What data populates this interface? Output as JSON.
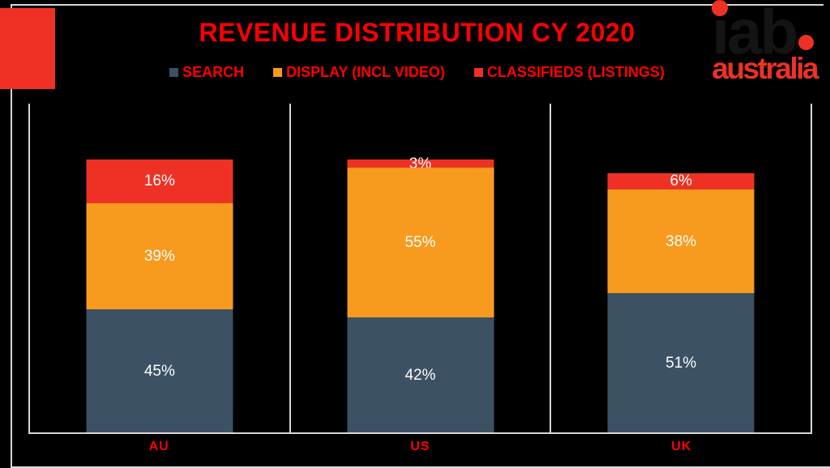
{
  "title": "REVENUE DISTRIBUTION CY 2020",
  "logo": {
    "brand": "iab",
    "brand_dot": ".",
    "region": "australia"
  },
  "legend": [
    {
      "label": "SEARCH",
      "color": "#3C5164"
    },
    {
      "label": "DISPLAY (INCL VIDEO)",
      "color": "#F79A1E"
    },
    {
      "label": "CLASSIFIEDS (LISTINGS)",
      "color": "#EE3124"
    }
  ],
  "chart_data": {
    "type": "bar",
    "stacked": true,
    "orientation": "vertical",
    "title": "REVENUE DISTRIBUTION CY 2020",
    "unit": "%",
    "ylim": [
      0,
      100
    ],
    "grid": false,
    "legend_position": "top",
    "categories": [
      "AU",
      "US",
      "UK"
    ],
    "series": [
      {
        "name": "SEARCH",
        "color": "#3C5164",
        "values": [
          45,
          42,
          51
        ],
        "labels": [
          "45%",
          "42%",
          "51%"
        ]
      },
      {
        "name": "DISPLAY (INCL VIDEO)",
        "color": "#F79A1E",
        "values": [
          39,
          55,
          38
        ],
        "labels": [
          "39%",
          "55%",
          "38%"
        ]
      },
      {
        "name": "CLASSIFIEDS (LISTINGS)",
        "color": "#EE3124",
        "values": [
          16,
          3,
          6
        ],
        "labels": [
          "16%",
          "3%",
          "6%"
        ]
      }
    ]
  },
  "colors": {
    "background": "#000000",
    "border_line": "#D6D6D6",
    "text_red": "#FF0000",
    "accent_square": "#EE3124",
    "value_label": "#FFFFFF",
    "logo_black": "#141414",
    "logo_red": "#EE3124"
  }
}
